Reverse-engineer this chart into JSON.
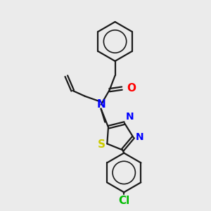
{
  "bg_color": "#ebebeb",
  "bond_color": "#1a1a1a",
  "N_color": "#0000ff",
  "O_color": "#ff0000",
  "S_color": "#cccc00",
  "Cl_color": "#00bb00",
  "bond_width": 1.6,
  "font_size": 10,
  "fig_width": 3.0,
  "fig_height": 3.0,
  "dpi": 100,
  "xlim": [
    0.0,
    6.5
  ],
  "ylim": [
    0.2,
    7.8
  ]
}
